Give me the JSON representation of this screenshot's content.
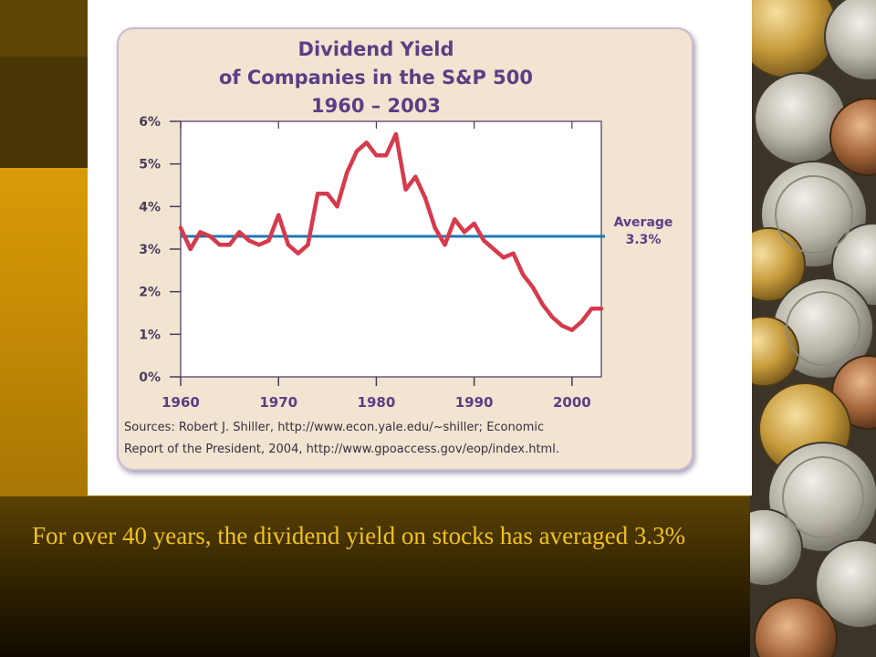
{
  "slide": {
    "caption": "For over 40 years, the dividend yield on stocks has averaged 3.3%",
    "colors": {
      "caption_text": "#f1c21e",
      "gold_band": "#d89b08",
      "dark_band": "#4a3604"
    }
  },
  "chart_data": {
    "type": "line",
    "title_lines": [
      "Dividend Yield",
      "of Companies in the S&P 500",
      "1960 – 2003"
    ],
    "xlabel": "",
    "ylabel": "",
    "xlim": [
      1960,
      2003
    ],
    "ylim": [
      0,
      6
    ],
    "x_ticks": [
      "1960",
      "1970",
      "1980",
      "1990",
      "2000"
    ],
    "y_ticks": [
      "0%",
      "1%",
      "2%",
      "3%",
      "4%",
      "5%",
      "6%"
    ],
    "series": [
      {
        "color": "#d63a4c",
        "x": [
          1960,
          1961,
          1962,
          1963,
          1964,
          1965,
          1966,
          1967,
          1968,
          1969,
          1970,
          1971,
          1972,
          1973,
          1974,
          1975,
          1976,
          1977,
          1978,
          1979,
          1980,
          1981,
          1982,
          1983,
          1984,
          1985,
          1986,
          1987,
          1988,
          1989,
          1990,
          1991,
          1992,
          1993,
          1994,
          1995,
          1996,
          1997,
          1998,
          1999,
          2000,
          2001,
          2002,
          2003
        ],
        "y": [
          3.5,
          3.0,
          3.4,
          3.3,
          3.1,
          3.1,
          3.4,
          3.2,
          3.1,
          3.2,
          3.8,
          3.1,
          2.9,
          3.1,
          4.3,
          4.3,
          4.0,
          4.8,
          5.3,
          5.5,
          5.2,
          5.2,
          5.7,
          4.4,
          4.7,
          4.2,
          3.5,
          3.1,
          3.7,
          3.4,
          3.6,
          3.2,
          3.0,
          2.8,
          2.9,
          2.4,
          2.1,
          1.7,
          1.4,
          1.2,
          1.1,
          1.3,
          1.6,
          1.6
        ]
      }
    ],
    "reference_line": {
      "value": 3.3,
      "label_lines": [
        "Average",
        "3.3%"
      ],
      "color": "#1f78b4"
    },
    "grid": false,
    "sources_lines": [
      "Sources: Robert J. Shiller, http://www.econ.yale.edu/~shiller; Economic",
      "Report of the President, 2004,  http://www.gpoaccess.gov/eop/index.html."
    ]
  }
}
